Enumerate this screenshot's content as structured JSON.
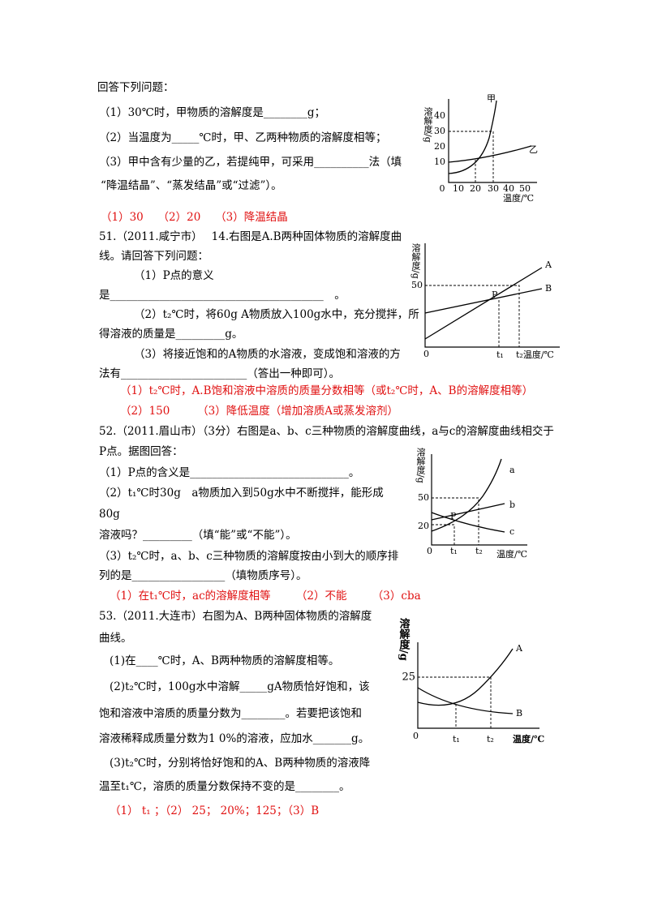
{
  "intro": "回答下列问题：",
  "q50": {
    "lines": [
      "（1）30℃时，甲物质的溶解度是________g；",
      "（2）当温度为_____℃时，甲、乙两种物质的溶解度相等；",
      "（3）甲中含有少量的乙，若提纯甲，可采用__________法（填",
      "“降温结晶”、“蒸发结晶”或“过滤”）。"
    ],
    "answer": "（1）30　 （2）20　 （3）降温结晶",
    "figure": {
      "curve_a": "甲",
      "curve_b": "乙",
      "y_label": "溶解度/g",
      "yticks": [
        "40",
        "30",
        "20",
        "10"
      ],
      "xticks": [
        "0",
        "10",
        "20",
        "30",
        "40",
        "50"
      ],
      "x_label": "温度/℃"
    }
  },
  "q51": {
    "lines": [
      "51.（2011.咸宁市）　 14.右图是A.B两种固体物质的溶解度曲",
      "线。请回答下列问题：",
      "（1）P点的意义",
      "是_______________________________________　。",
      "（2）t₂℃时，将60g A物质放入100g水中，充分搅拌，所",
      "得溶液的质量是_________g。",
      "（3）将接近饱和的A物质的水溶液，变成饱和溶液的方",
      "法有_______________________（答出一种即可）。"
    ],
    "answers": [
      "（1）t₂℃时，A.B饱和溶液中溶质的质量分数相等（或t₂℃时，A、B的溶解度相等）",
      "（2）150　　　（3）降低温度（增加溶质A或蒸发溶剂）"
    ],
    "figure": {
      "curve_a": "A",
      "curve_b": "B",
      "y_label": "溶解度/g",
      "ytick": "50",
      "point": "P",
      "origin": "0",
      "t1": "t₁",
      "t2": "t₂温度/℃"
    }
  },
  "q52": {
    "lines": [
      "52.（2011.眉山市）（3分）右图是a、b、c三种物质的溶解度曲线，a与c的溶解度曲线相交于",
      "P点。据图回答：",
      "（1）P点的含义是_____________________________。",
      "（2）t₁℃时30g　a物质加入到50g水中不断搅拌，能形成",
      "80g",
      "溶液吗？_________（填“能”或“不能”）。",
      "（3）t₂℃时，a、b、c三种物质的溶解度按由小到大的顺序排",
      "列的是_________________（填物质序号）。"
    ],
    "answer": "（1）在t₁℃时，ac的溶解度相等　　 （2）不能　　 （3）cba",
    "figure": {
      "curve_a": "a",
      "curve_b": "b",
      "curve_c": "c",
      "y_label": "溶解度/g",
      "yticks": [
        "50",
        "20"
      ],
      "point": "P",
      "origin": "0",
      "t1": "t₁",
      "t2": "t₂",
      "x_label": "温度/℃"
    }
  },
  "q53": {
    "lines": [
      "53.（2011.大连市）右图为A、B两种固体物质的溶解度",
      "曲线。",
      "(1)在____℃时，A、B两种物质的溶解度相等。",
      "(2)t₂℃时，100g水中溶解_____gA物质恰好饱和，该",
      "饱和溶液中溶质的质量分数为________。若要把该饱和",
      "溶液稀释成质量分数为1 0%的溶液，应加水_______g。",
      "(3)t₂℃时，分别将恰好饱和的A、B两种物质的溶液降",
      "温至t₁℃，溶质的质量分数保持不变的是________。"
    ],
    "answer": "（1） t₁ ；（2） 25； 20%；125；（3）B",
    "figure": {
      "curve_a": "A",
      "curve_b": "B",
      "y_label": "溶解度/g",
      "ytick": "25",
      "origin": "0",
      "t1": "t₁",
      "t2": "t₂",
      "x_label": "温度/℃"
    }
  }
}
